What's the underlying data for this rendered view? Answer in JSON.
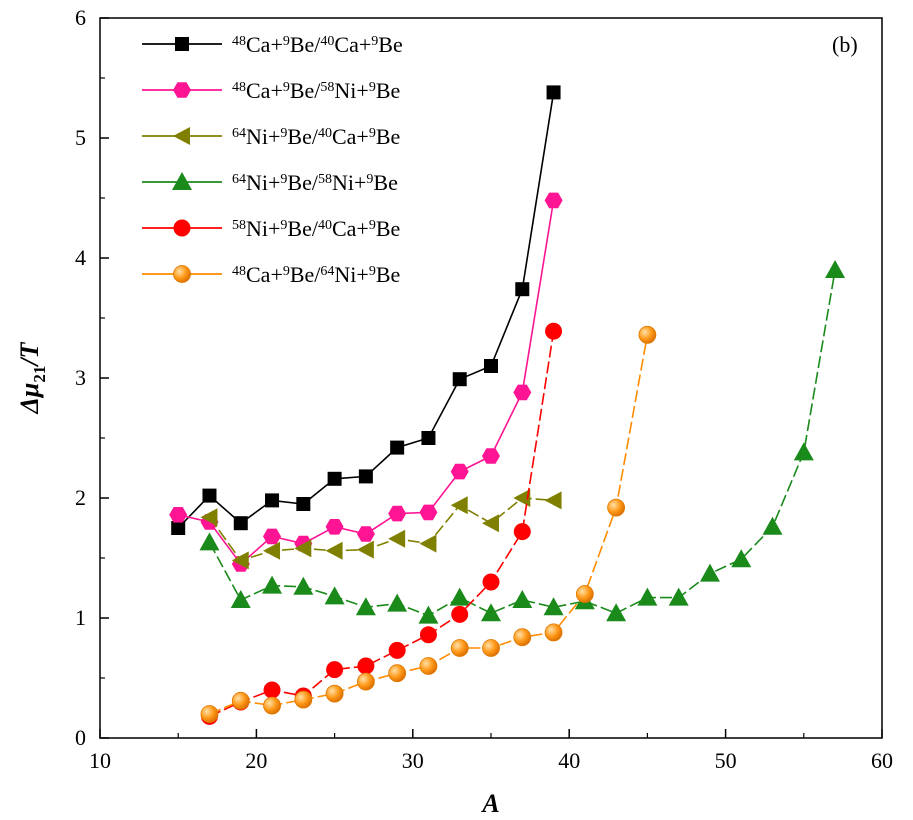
{
  "chart_data": {
    "type": "line",
    "panel_label": "(b)",
    "xlabel": "A",
    "ylabel_base": "Δμ",
    "ylabel_sub": "21",
    "ylabel_tail": "/T",
    "xlim": [
      10,
      60
    ],
    "ylim": [
      0,
      6
    ],
    "xticks": [
      10,
      20,
      30,
      40,
      50,
      60
    ],
    "yticks": [
      0,
      1,
      2,
      3,
      4,
      5,
      6
    ],
    "legend_position": "top-left",
    "series": [
      {
        "name": "48Ca+9Be/40Ca+9Be",
        "label_parts": [
          [
            "48",
            "sup"
          ],
          [
            "Ca+",
            ""
          ],
          [
            "9",
            "sup"
          ],
          [
            "Be/",
            ""
          ],
          [
            "40",
            "sup"
          ],
          [
            "Ca+",
            ""
          ],
          [
            "9",
            "sup"
          ],
          [
            "Be",
            ""
          ]
        ],
        "color": "#000000",
        "marker": "square",
        "dash": "solid",
        "x": [
          15,
          17,
          19,
          21,
          23,
          25,
          27,
          29,
          31,
          33,
          35,
          37,
          39
        ],
        "y": [
          1.75,
          2.02,
          1.79,
          1.98,
          1.95,
          2.16,
          2.18,
          2.42,
          2.5,
          2.99,
          3.1,
          3.74,
          5.38
        ]
      },
      {
        "name": "48Ca+9Be/58Ni+9Be",
        "label_parts": [
          [
            "48",
            "sup"
          ],
          [
            "Ca+",
            ""
          ],
          [
            "9",
            "sup"
          ],
          [
            "Be/",
            ""
          ],
          [
            "58",
            "sup"
          ],
          [
            "Ni+",
            ""
          ],
          [
            "9",
            "sup"
          ],
          [
            "Be",
            ""
          ]
        ],
        "color": "#ff1493",
        "marker": "hexagon",
        "dash": "solid",
        "x": [
          15,
          17,
          19,
          21,
          23,
          25,
          27,
          29,
          31,
          33,
          35,
          37,
          39
        ],
        "y": [
          1.86,
          1.8,
          1.45,
          1.68,
          1.62,
          1.76,
          1.7,
          1.87,
          1.88,
          2.22,
          2.35,
          2.88,
          4.48
        ]
      },
      {
        "name": "64Ni+9Be/40Ca+9Be",
        "label_parts": [
          [
            "64",
            "sup"
          ],
          [
            "Ni+",
            ""
          ],
          [
            "9",
            "sup"
          ],
          [
            "Be/",
            ""
          ],
          [
            "40",
            "sup"
          ],
          [
            "Ca+",
            ""
          ],
          [
            "9",
            "sup"
          ],
          [
            "Be",
            ""
          ]
        ],
        "color": "#808000",
        "marker": "triangle-left",
        "dash": "dashed",
        "x": [
          17,
          19,
          21,
          23,
          25,
          27,
          29,
          31,
          33,
          35,
          37,
          39
        ],
        "y": [
          1.84,
          1.48,
          1.56,
          1.58,
          1.56,
          1.57,
          1.66,
          1.62,
          1.94,
          1.79,
          2.0,
          1.98
        ]
      },
      {
        "name": "64Ni+9Be/58Ni+9Be",
        "label_parts": [
          [
            "64",
            "sup"
          ],
          [
            "Ni+",
            ""
          ],
          [
            "9",
            "sup"
          ],
          [
            "Be/",
            ""
          ],
          [
            "58",
            "sup"
          ],
          [
            "Ni+",
            ""
          ],
          [
            "9",
            "sup"
          ],
          [
            "Be",
            ""
          ]
        ],
        "color": "#1a8a1a",
        "marker": "triangle-up",
        "dash": "dashed",
        "x": [
          17,
          19,
          21,
          23,
          25,
          27,
          29,
          31,
          33,
          35,
          37,
          39,
          41,
          43,
          45,
          47,
          49,
          51,
          53,
          55,
          57
        ],
        "y": [
          1.63,
          1.15,
          1.27,
          1.26,
          1.18,
          1.09,
          1.12,
          1.02,
          1.17,
          1.04,
          1.15,
          1.09,
          1.14,
          1.04,
          1.17,
          1.17,
          1.37,
          1.49,
          1.76,
          2.38,
          3.9
        ]
      },
      {
        "name": "58Ni+9Be/40Ca+9Be",
        "label_parts": [
          [
            "58",
            "sup"
          ],
          [
            "Ni+",
            ""
          ],
          [
            "9",
            "sup"
          ],
          [
            "Be/",
            ""
          ],
          [
            "40",
            "sup"
          ],
          [
            "Ca+",
            ""
          ],
          [
            "9",
            "sup"
          ],
          [
            "Be",
            ""
          ]
        ],
        "color": "#ff0000",
        "marker": "circle",
        "dash": "dashed",
        "x": [
          17,
          19,
          21,
          23,
          25,
          27,
          29,
          31,
          33,
          35,
          37,
          39
        ],
        "y": [
          0.18,
          0.3,
          0.4,
          0.35,
          0.57,
          0.6,
          0.73,
          0.86,
          1.03,
          1.3,
          1.72,
          3.39
        ]
      },
      {
        "name": "48Ca+9Be/64Ni+9Be",
        "label_parts": [
          [
            "48",
            "sup"
          ],
          [
            "Ca+",
            ""
          ],
          [
            "9",
            "sup"
          ],
          [
            "Be/",
            ""
          ],
          [
            "64",
            "sup"
          ],
          [
            "Ni+",
            ""
          ],
          [
            "9",
            "sup"
          ],
          [
            "Be",
            ""
          ]
        ],
        "color": "#ff8c00",
        "marker": "sphere",
        "dash": "dashed",
        "x": [
          17,
          19,
          21,
          23,
          25,
          27,
          29,
          31,
          33,
          35,
          37,
          39,
          41,
          43,
          45
        ],
        "y": [
          0.2,
          0.31,
          0.27,
          0.32,
          0.37,
          0.47,
          0.54,
          0.6,
          0.75,
          0.75,
          0.84,
          0.88,
          1.2,
          1.92,
          3.36
        ]
      }
    ]
  }
}
